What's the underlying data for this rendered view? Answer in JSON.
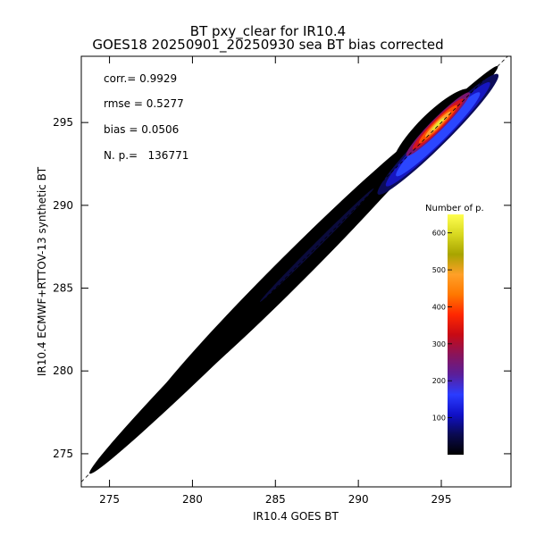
{
  "chart_data": {
    "type": "heatmap",
    "title": "BT pxy_clear for IR10.4",
    "subtitle": "GOES18 20250901_20250930 sea BT bias corrected",
    "xlabel": "IR10.4 GOES BT",
    "ylabel": "IR10.4 ECMWF+RTTOV-13 synthetic BT",
    "xlim": [
      273.3,
      299.2
    ],
    "ylim": [
      273.0,
      299.0
    ],
    "x_ticks": [
      275,
      280,
      285,
      290,
      295
    ],
    "y_ticks": [
      275,
      280,
      285,
      290,
      295
    ],
    "diagonal_reference_line": true,
    "stats": {
      "corr": "corr.= 0.9929",
      "rmse": "rmse = 0.5277",
      "bias": "bias = 0.0506",
      "np": "N. p.=   136771"
    },
    "colorbar": {
      "title": "Number of p.",
      "range": [
        0,
        650
      ],
      "ticks": [
        100,
        200,
        300,
        400,
        500,
        600
      ],
      "colors": [
        "#000000",
        "#0a0a50",
        "#1010c8",
        "#2a3cff",
        "#5a1e9a",
        "#8a145a",
        "#c80a14",
        "#ff2800",
        "#ff7800",
        "#ffa028",
        "#a8a400",
        "#d8d820",
        "#ffff50"
      ]
    },
    "density_band": {
      "x_from": 273.8,
      "x_to": 298.4,
      "peak_count": 650,
      "peak_x": 294.8,
      "peak_y": 294.9
    }
  }
}
